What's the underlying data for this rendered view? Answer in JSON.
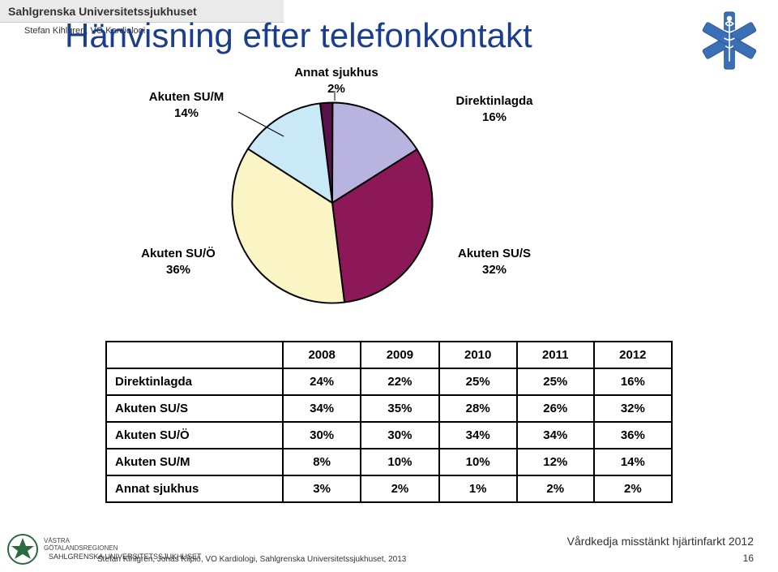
{
  "header": {
    "org_name": "Sahlgrenska Universitetssjukhuset",
    "presenter": "Stefan Kihlgren, VO Kardiologi"
  },
  "title": "Hänvisning efter telefonkontakt",
  "pie": {
    "type": "pie",
    "background_color": "#ffffff",
    "stroke_color": "#000000",
    "stroke_width": 1.5,
    "slices": [
      {
        "label": "Direktinlagda",
        "sub": "16%",
        "value": 16,
        "color": "#b9b3e0"
      },
      {
        "label": "Akuten SU/S",
        "sub": "32%",
        "value": 32,
        "color": "#8c1858"
      },
      {
        "label": "Akuten SU/Ö",
        "sub": "36%",
        "value": 36,
        "color": "#fbf4c4"
      },
      {
        "label": "Akuten SU/M",
        "sub": "14%",
        "value": 14,
        "color": "#c9e9f6"
      },
      {
        "label": "Annat sjukhus",
        "sub": "2%",
        "value": 2,
        "color": "#5a1048"
      }
    ],
    "label_fontsize": 15,
    "label_fontweight": "bold"
  },
  "table": {
    "columns": [
      "",
      "2008",
      "2009",
      "2010",
      "2011",
      "2012"
    ],
    "rows": [
      {
        "label": "Direktinlagda",
        "cells": [
          "24%",
          "22%",
          "25%",
          "25%",
          "16%"
        ]
      },
      {
        "label": "Akuten SU/S",
        "cells": [
          "34%",
          "35%",
          "28%",
          "26%",
          "32%"
        ]
      },
      {
        "label": "Akuten SU/Ö",
        "cells": [
          "30%",
          "30%",
          "34%",
          "34%",
          "36%"
        ]
      },
      {
        "label": "Akuten SU/M",
        "cells": [
          "8%",
          "10%",
          "10%",
          "12%",
          "14%"
        ]
      },
      {
        "label": "Annat sjukhus",
        "cells": [
          "3%",
          "2%",
          "1%",
          "2%",
          "2%"
        ]
      }
    ],
    "border_color": "#000000",
    "border_width": 2,
    "cell_fontsize": 15,
    "cell_fontweight": "bold"
  },
  "footer": {
    "region_name": "VÄSTRA\nGÖTALANDSREGIONEN",
    "org_small": "SAHLGRENSKA UNIVERSITETSSJUKHUSET",
    "credit": "Stefan Kihlgren, Jonas Kilpiö, VO Kardiologi, Sahlgrenska Universitetssjukhuset, 2013",
    "subtitle": "Vårdkedja misstänkt hjärtinfarkt 2012",
    "page": "16"
  },
  "colors": {
    "title_color": "#1a3e8c",
    "text_color": "#000000",
    "header_bg": "#eaeaea"
  }
}
